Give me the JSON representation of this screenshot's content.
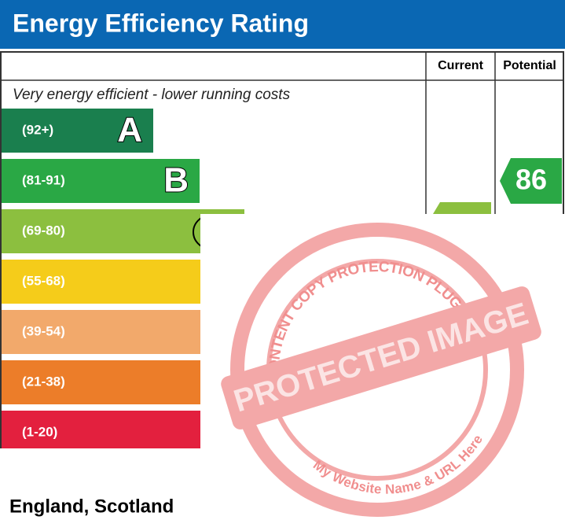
{
  "header": {
    "title": "Energy Efficiency Rating"
  },
  "table": {
    "columns": [
      "Current",
      "Potential"
    ]
  },
  "top_note": "Very energy efficient - lower running costs",
  "bands": [
    {
      "range": "(92+)",
      "letter": "A"
    },
    {
      "range": "(81-91)",
      "letter": "B"
    },
    {
      "range": "(69-80)"
    },
    {
      "range": "(55-68)"
    },
    {
      "range": "(39-54)"
    },
    {
      "range": "(21-38)"
    },
    {
      "range": "(1-20)"
    }
  ],
  "potential": "86",
  "footer": "England, Scotland",
  "watermark": {
    "arc": "WP CONTENT COPY PROTECTION PLUGIN",
    "banner": "PROTECTED IMAGE",
    "bottom": "My Website Name & URL Here"
  }
}
